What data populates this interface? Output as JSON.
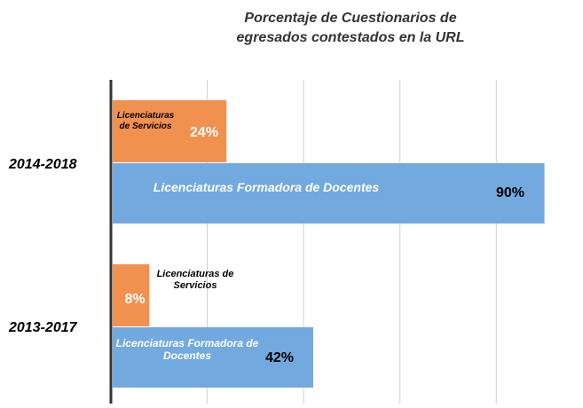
{
  "chart_data": {
    "type": "bar",
    "orientation": "horizontal",
    "title": "Porcentaje de Cuestionarios de egresados contestados en la URL",
    "categories": [
      "2014-2018",
      "2013-2017"
    ],
    "series": [
      {
        "name": "Licenciaturas de Servicios",
        "color": "#f0914f",
        "values": [
          24,
          8
        ],
        "value_labels": [
          "24%",
          "8%"
        ]
      },
      {
        "name": "Licenciaturas Formadora de Docentes",
        "color": "#72a9de",
        "values": [
          90,
          42
        ],
        "value_labels": [
          "90%",
          "42%"
        ]
      }
    ],
    "xlim": [
      0,
      98
    ],
    "xticks": [
      0,
      20,
      40,
      60,
      80
    ],
    "grid": true
  }
}
